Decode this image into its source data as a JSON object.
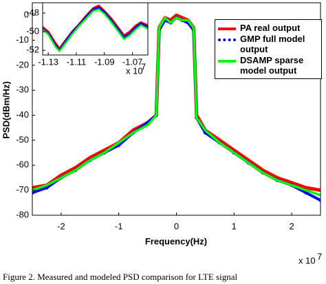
{
  "chart_data": [
    {
      "type": "line",
      "y_label": "PSD(dBm/Hz)",
      "x_label": "Frequency(Hz)",
      "x_multiplier": {
        "base": "x 10",
        "exponent": "7"
      },
      "caption": "Figure 2. Measured and modeled PSD comparison for LTE signal",
      "xlim": [
        -2.5,
        2.5
      ],
      "xticks": [
        -2,
        -1,
        0,
        1,
        2
      ],
      "ylim": [
        -80,
        5
      ],
      "yticks": [
        0,
        -10,
        -20,
        -30,
        -40,
        -50,
        -60,
        -70,
        -80
      ],
      "legend": "upper right",
      "x": [
        -2.5,
        -2.25,
        -2.0,
        -1.75,
        -1.5,
        -1.25,
        -1.0,
        -0.75,
        -0.5,
        -0.35,
        -0.3,
        -0.2,
        -0.1,
        0,
        0.1,
        0.2,
        0.3,
        0.35,
        0.5,
        0.75,
        1.0,
        1.25,
        1.5,
        1.75,
        2.0,
        2.25,
        2.5
      ],
      "series": [
        {
          "name": "PA real output",
          "color": "#ff0000",
          "values": [
            -69,
            -68,
            -64,
            -61,
            -57,
            -54,
            -51,
            -46,
            -43,
            -40,
            -5,
            -1,
            -2,
            0,
            -1,
            -2,
            -5,
            -40,
            -46,
            -50,
            -54,
            -58,
            -62,
            -65,
            -67,
            -69,
            -70
          ]
        },
        {
          "name": "GMP full model output",
          "color": "#0000ff",
          "values": [
            -71,
            -69,
            -65,
            -62,
            -58,
            -55,
            -52,
            -47,
            -43,
            -40,
            -6,
            -2,
            -3,
            -1,
            -2,
            -3,
            -6,
            -41,
            -47,
            -51,
            -55,
            -59,
            -63,
            -66,
            -68,
            -71,
            -74
          ]
        },
        {
          "name": "DSAMP sparse model output",
          "color": "#00ff00",
          "values": [
            -70,
            -68,
            -65,
            -62,
            -58,
            -55,
            -51,
            -47,
            -44,
            -40,
            -5,
            -1,
            -3,
            -1,
            -2,
            -2,
            -5,
            -41,
            -46,
            -51,
            -55,
            -59,
            -63,
            -66,
            -68,
            -70,
            -72
          ]
        }
      ]
    },
    {
      "type": "line",
      "x_multiplier": {
        "base": "x 10",
        "exponent": "7"
      },
      "xlim": [
        -1.134,
        -1.059
      ],
      "xticks": [
        -1.13,
        -1.11,
        -1.09,
        -1.07
      ],
      "ylim": [
        -52.5,
        -46.9
      ],
      "yticks": [
        -48,
        -50,
        -52
      ],
      "x": [
        -1.134,
        -1.13,
        -1.125,
        -1.122,
        -1.118,
        -1.113,
        -1.108,
        -1.103,
        -1.098,
        -1.094,
        -1.09,
        -1.085,
        -1.08,
        -1.076,
        -1.072,
        -1.068,
        -1.064,
        -1.059
      ],
      "series": [
        {
          "color": "#ff0000",
          "values": [
            -49.5,
            -50,
            -51.2,
            -51.8,
            -51,
            -50,
            -49.2,
            -48.3,
            -47.5,
            -47.2,
            -47.8,
            -48.6,
            -49.6,
            -50.4,
            -50,
            -49.4,
            -49,
            -49.3
          ]
        },
        {
          "color": "#0000ff",
          "values": [
            -49.7,
            -50.2,
            -51.4,
            -52,
            -51.1,
            -50.1,
            -49.3,
            -48.4,
            -47.6,
            -47.4,
            -47.9,
            -48.8,
            -49.8,
            -50.6,
            -50.2,
            -49.6,
            -49.1,
            -49.5
          ]
        },
        {
          "color": "#00ff00",
          "values": [
            -49.8,
            -50.3,
            -51.6,
            -52.1,
            -51.3,
            -50.3,
            -49.4,
            -48.6,
            -47.8,
            -47.6,
            -48.1,
            -49,
            -50,
            -50.8,
            -50.4,
            -49.8,
            -49.3,
            -49.7
          ]
        }
      ]
    }
  ]
}
